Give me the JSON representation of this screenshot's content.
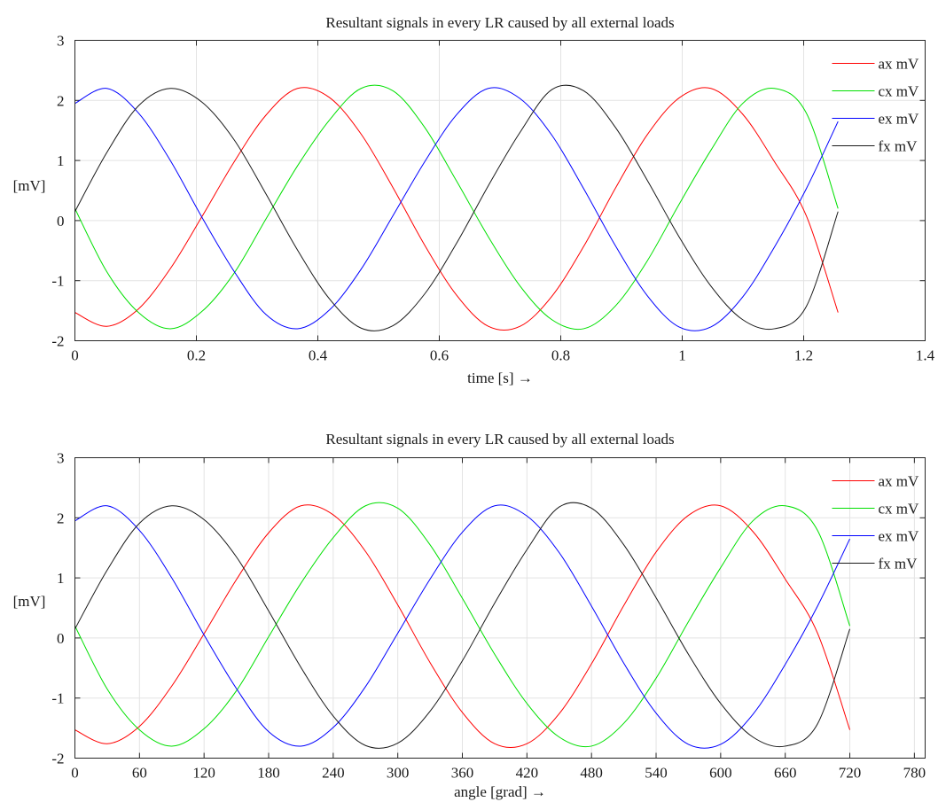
{
  "chart_data": [
    {
      "type": "line",
      "title": "Resultant signals in every LR caused by all external loads",
      "xlabel": "time [s] →",
      "ylabel": "[mV]",
      "xlim": [
        0,
        1.4
      ],
      "ylim": [
        -2,
        3
      ],
      "xticks": [
        0,
        0.2,
        0.4,
        0.6,
        0.8,
        1.0,
        1.2,
        1.4
      ],
      "xtick_labels": [
        "0",
        "0.2",
        "0.4",
        "0.6",
        "0.8",
        "1",
        "1.2",
        "1.4"
      ],
      "yticks": [
        -2,
        -1,
        0,
        1,
        2,
        3
      ],
      "ytick_labels": [
        "-2",
        "-1",
        "0",
        "1",
        "2",
        "3"
      ],
      "grid": true,
      "legend_position": "top-right",
      "x": [
        0,
        0.0524,
        0.1047,
        0.1571,
        0.2094,
        0.2618,
        0.3142,
        0.3665,
        0.4189,
        0.4712,
        0.5236,
        0.576,
        0.6283,
        0.6807,
        0.733,
        0.7854,
        0.8378,
        0.8901,
        0.9425,
        0.9948,
        1.0472,
        1.0996,
        1.1519,
        1.2043,
        1.2566
      ],
      "series": [
        {
          "name": "ax mV",
          "color": "#ff0000",
          "values": [
            -1.53,
            -1.76,
            -1.47,
            -0.8,
            0.07,
            0.97,
            1.75,
            2.2,
            2.05,
            1.44,
            0.55,
            -0.41,
            -1.24,
            -1.76,
            -1.76,
            -1.26,
            -0.43,
            0.54,
            1.43,
            2.04,
            2.2,
            1.77,
            0.98,
            0.08,
            -1.53
          ]
        },
        {
          "name": "cx mV",
          "color": "#00e000",
          "values": [
            0.2,
            -0.85,
            -1.53,
            -1.8,
            -1.51,
            -0.88,
            0.02,
            0.91,
            1.67,
            2.2,
            2.16,
            1.55,
            0.66,
            -0.27,
            -1.09,
            -1.65,
            -1.8,
            -1.42,
            -0.67,
            0.27,
            1.17,
            1.95,
            2.2,
            1.79,
            0.2
          ]
        },
        {
          "name": "ex mV",
          "color": "#0000ff",
          "values": [
            1.95,
            2.2,
            1.79,
            1.0,
            0.05,
            -0.84,
            -1.56,
            -1.8,
            -1.49,
            -0.81,
            0.08,
            0.98,
            1.76,
            2.2,
            2.03,
            1.42,
            0.53,
            -0.42,
            -1.25,
            -1.77,
            -1.77,
            -1.27,
            -0.44,
            0.53,
            1.65
          ]
        },
        {
          "name": "fx mV",
          "color": "#1a1a1a",
          "values": [
            0.15,
            1.13,
            1.91,
            2.2,
            1.97,
            1.35,
            0.45,
            -0.49,
            -1.3,
            -1.79,
            -1.75,
            -1.22,
            -0.38,
            0.58,
            1.47,
            2.18,
            2.16,
            1.55,
            0.67,
            -0.27,
            -1.09,
            -1.65,
            -1.8,
            -1.43,
            0.15
          ]
        }
      ]
    },
    {
      "type": "line",
      "title": "Resultant signals in every LR caused by all external loads",
      "xlabel": "angle [grad] →",
      "ylabel": "[mV]",
      "xlim": [
        0,
        790
      ],
      "ylim": [
        -2,
        3
      ],
      "xticks": [
        0,
        60,
        120,
        180,
        240,
        300,
        360,
        420,
        480,
        540,
        600,
        660,
        720,
        780
      ],
      "xtick_labels": [
        "0",
        "60",
        "120",
        "180",
        "240",
        "300",
        "360",
        "420",
        "480",
        "540",
        "600",
        "660",
        "720",
        "780"
      ],
      "yticks": [
        -2,
        -1,
        0,
        1,
        2,
        3
      ],
      "ytick_labels": [
        "-2",
        "-1",
        "0",
        "1",
        "2",
        "3"
      ],
      "grid": true,
      "legend_position": "top-right",
      "x": [
        0,
        30,
        60,
        90,
        120,
        150,
        180,
        210,
        240,
        270,
        300,
        330,
        360,
        390,
        420,
        450,
        480,
        510,
        540,
        570,
        600,
        630,
        660,
        690,
        720
      ],
      "series": [
        {
          "name": "ax mV",
          "color": "#ff0000",
          "values": [
            -1.53,
            -1.76,
            -1.47,
            -0.8,
            0.07,
            0.97,
            1.75,
            2.2,
            2.05,
            1.44,
            0.55,
            -0.41,
            -1.24,
            -1.76,
            -1.76,
            -1.26,
            -0.43,
            0.54,
            1.43,
            2.04,
            2.2,
            1.77,
            0.98,
            0.08,
            -1.53
          ]
        },
        {
          "name": "cx mV",
          "color": "#00e000",
          "values": [
            0.2,
            -0.85,
            -1.53,
            -1.8,
            -1.51,
            -0.88,
            0.02,
            0.91,
            1.67,
            2.2,
            2.16,
            1.55,
            0.66,
            -0.27,
            -1.09,
            -1.65,
            -1.8,
            -1.42,
            -0.67,
            0.27,
            1.17,
            1.95,
            2.2,
            1.79,
            0.2
          ]
        },
        {
          "name": "ex mV",
          "color": "#0000ff",
          "values": [
            1.95,
            2.2,
            1.79,
            1.0,
            0.05,
            -0.84,
            -1.56,
            -1.8,
            -1.49,
            -0.81,
            0.08,
            0.98,
            1.76,
            2.2,
            2.03,
            1.42,
            0.53,
            -0.42,
            -1.25,
            -1.77,
            -1.77,
            -1.27,
            -0.44,
            0.53,
            1.65
          ]
        },
        {
          "name": "fx mV",
          "color": "#1a1a1a",
          "values": [
            0.15,
            1.13,
            1.91,
            2.2,
            1.97,
            1.35,
            0.45,
            -0.49,
            -1.3,
            -1.79,
            -1.75,
            -1.22,
            -0.38,
            0.58,
            1.47,
            2.18,
            2.16,
            1.55,
            0.67,
            -0.27,
            -1.09,
            -1.65,
            -1.8,
            -1.43,
            0.15
          ]
        }
      ]
    }
  ]
}
